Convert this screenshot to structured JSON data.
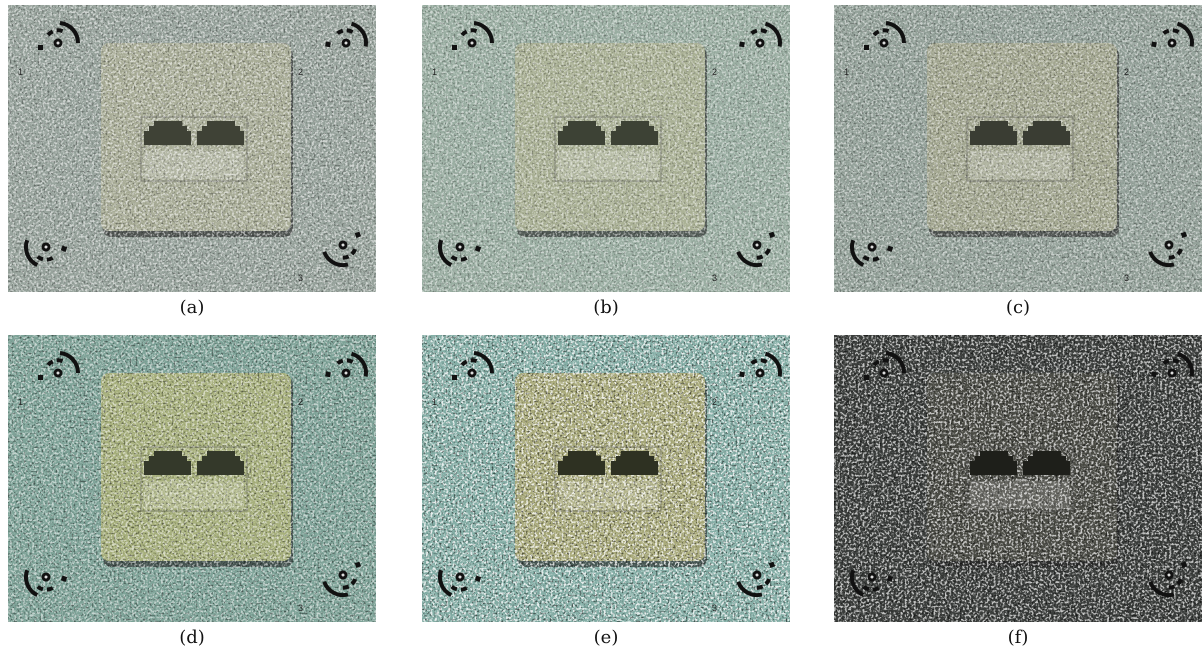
{
  "panels": [
    {
      "caption": "(a)"
    },
    {
      "caption": "(b)"
    },
    {
      "caption": "(c)"
    },
    {
      "caption": "(d)"
    },
    {
      "caption": "(e)"
    },
    {
      "caption": "(f)"
    }
  ],
  "marker_labels": [
    "1",
    "2",
    "3"
  ]
}
